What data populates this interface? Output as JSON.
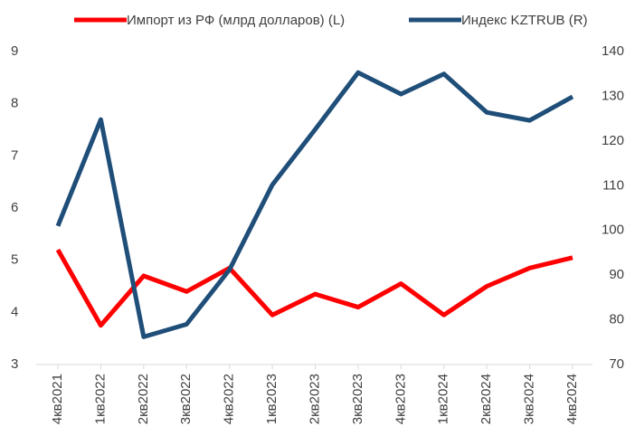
{
  "chart_data": {
    "type": "line",
    "categories": [
      "4кв2021",
      "1кв2022",
      "2кв2022",
      "3кв2022",
      "4кв2022",
      "1кв2023",
      "2кв2023",
      "3кв2023",
      "4кв2023",
      "1кв2024",
      "2кв2024",
      "3кв2024",
      "4кв2024"
    ],
    "series": [
      {
        "name": "Импорт из РФ (млрд долларов) (L)",
        "color": "#ff0000",
        "axis": "y",
        "values": [
          5.2,
          3.75,
          4.7,
          4.4,
          4.85,
          3.95,
          4.35,
          4.1,
          4.55,
          3.95,
          4.5,
          4.85,
          5.05
        ]
      },
      {
        "name": "Индекс KZTRUB (R)",
        "color": "#1f4e79",
        "axis": "y2",
        "values": [
          101,
          124.8,
          76.2,
          79,
          91.2,
          110.2,
          122.6,
          135.3,
          130.5,
          135,
          126.4,
          124.6,
          129.9
        ]
      }
    ],
    "ylim": [
      3,
      9
    ],
    "yticks": [
      3,
      4,
      5,
      6,
      7,
      8,
      9
    ],
    "y2lim": [
      70,
      140
    ],
    "y2ticks": [
      70,
      80,
      90,
      100,
      110,
      120,
      130,
      140
    ],
    "legend": "top"
  }
}
